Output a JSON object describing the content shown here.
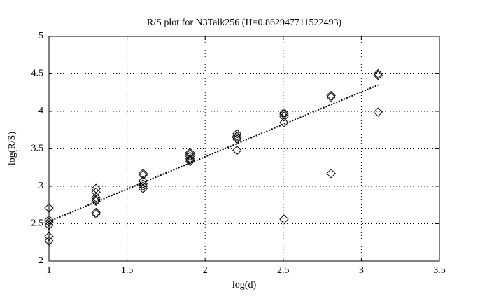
{
  "chart_data": {
    "type": "scatter",
    "title": "R/S plot for N3Talk256 (H=0.862947711522493)",
    "x_label": "log(d)",
    "y_label": "log(R/S)",
    "x": [
      1,
      1,
      1,
      1,
      1,
      1,
      1.301,
      1.301,
      1.301,
      1.301,
      1.301,
      1.301,
      1.301,
      1.602,
      1.602,
      1.602,
      1.602,
      1.602,
      1.602,
      1.903,
      1.903,
      1.903,
      1.903,
      1.903,
      1.903,
      2.204,
      2.204,
      2.204,
      2.204,
      2.204,
      2.505,
      2.505,
      2.505,
      2.505,
      2.505,
      2.806,
      2.806,
      2.806,
      3.107,
      3.107,
      3.107
    ],
    "values": [
      2.71,
      2.55,
      2.52,
      2.48,
      2.33,
      2.27,
      2.97,
      2.92,
      2.85,
      2.82,
      2.8,
      2.65,
      2.63,
      3.17,
      3.15,
      3.07,
      3.03,
      3,
      2.97,
      3.45,
      3.43,
      3.4,
      3.37,
      3.35,
      3.33,
      3.7,
      3.67,
      3.65,
      3.63,
      3.48,
      3.98,
      3.96,
      3.93,
      3.85,
      2.56,
      4.21,
      4.19,
      3.17,
      4.5,
      4.48,
      3.99
    ],
    "marker": "diamond",
    "color": "#000000",
    "fit": {
      "x": [
        1,
        3.107
      ],
      "values": [
        2.53,
        4.35
      ]
    },
    "xlim": [
      1,
      3.5
    ],
    "xticks": [
      1,
      1.5,
      2,
      2.5,
      3,
      3.5
    ],
    "ylim": [
      2,
      5
    ],
    "yticks": [
      2,
      2.5,
      3,
      3.5,
      4,
      4.5,
      5
    ],
    "grid": true
  }
}
